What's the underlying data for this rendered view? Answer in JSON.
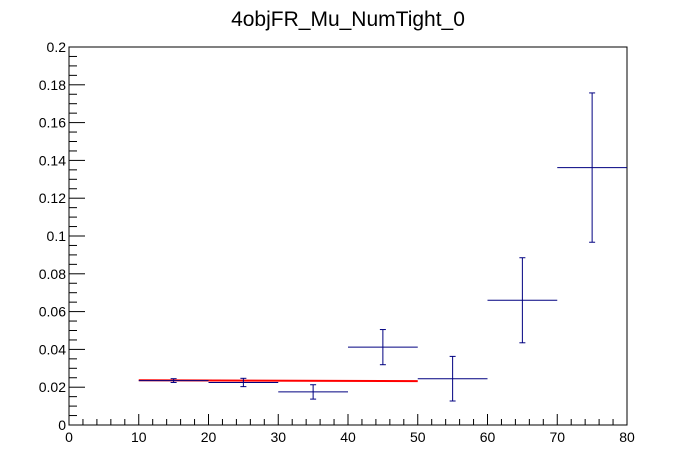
{
  "chart_data": {
    "type": "scatter",
    "title": "4objFR_Mu_NumTight_0",
    "xlabel": "",
    "ylabel": "",
    "xlim": [
      0,
      80
    ],
    "ylim": [
      0,
      0.2
    ],
    "x_ticks": [
      "0",
      "10",
      "20",
      "30",
      "40",
      "50",
      "60",
      "70",
      "80"
    ],
    "y_ticks": [
      "0",
      "0.02",
      "0.04",
      "0.06",
      "0.08",
      "0.1",
      "0.12",
      "0.14",
      "0.16",
      "0.18",
      "0.2"
    ],
    "grid": false,
    "legend": "none",
    "points": [
      {
        "x": 15,
        "y": 0.0235,
        "xlow": 10,
        "xhigh": 20,
        "yerr": 0.001
      },
      {
        "x": 25,
        "y": 0.0225,
        "xlow": 20,
        "xhigh": 30,
        "yerr": 0.0022
      },
      {
        "x": 35,
        "y": 0.0175,
        "xlow": 30,
        "xhigh": 40,
        "yerr": 0.0038
      },
      {
        "x": 45,
        "y": 0.0412,
        "xlow": 40,
        "xhigh": 50,
        "yerr": 0.0093
      },
      {
        "x": 55,
        "y": 0.0245,
        "xlow": 50,
        "xhigh": 60,
        "yerr": 0.0118
      },
      {
        "x": 65,
        "y": 0.066,
        "xlow": 60,
        "xhigh": 70,
        "yerr": 0.0225
      },
      {
        "x": 75,
        "y": 0.1362,
        "xlow": 70,
        "xhigh": 80,
        "yerr": 0.0395
      }
    ],
    "fit_line": {
      "x": [
        10,
        50
      ],
      "y": [
        0.0237,
        0.0232
      ]
    },
    "colors": {
      "points": "#000080",
      "fit": "#ff0000",
      "axes": "#000000"
    }
  }
}
